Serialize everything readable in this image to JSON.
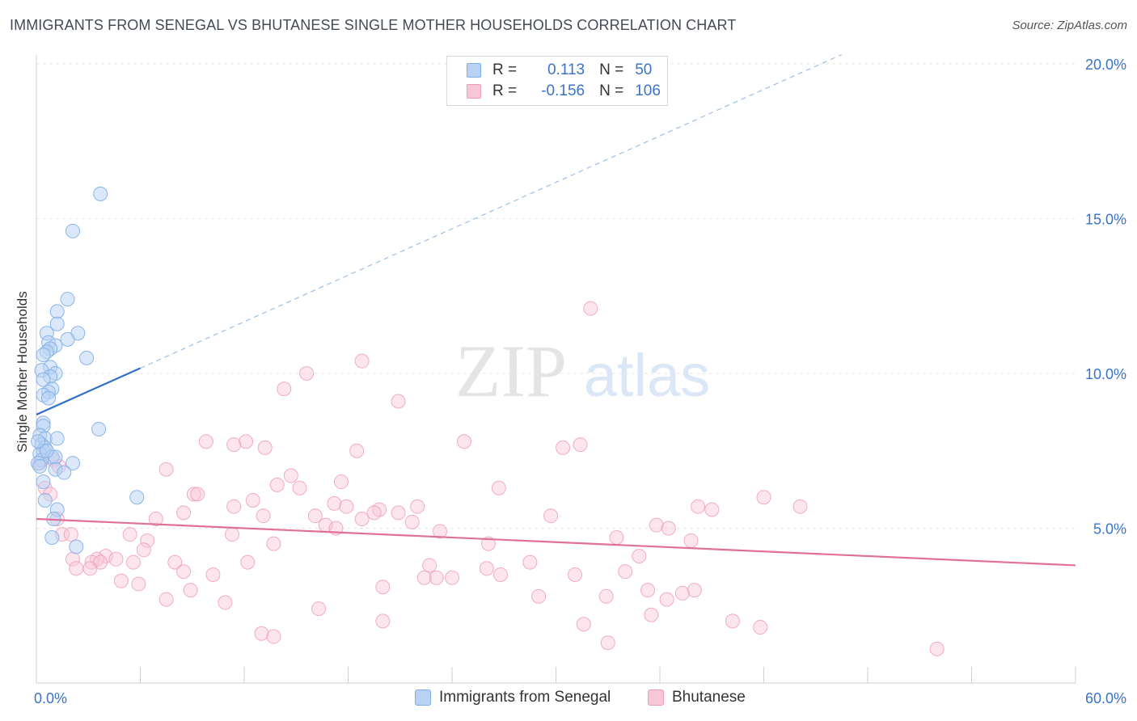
{
  "title": "IMMIGRANTS FROM SENEGAL VS BHUTANESE SINGLE MOTHER HOUSEHOLDS CORRELATION CHART",
  "source": "Source: ZipAtlas.com",
  "watermark": {
    "zip": "ZIP",
    "atlas": "atlas"
  },
  "legend": {
    "r_label": "R =",
    "n_label": "N =",
    "series1": {
      "r": "0.113",
      "n": "50"
    },
    "series2": {
      "r": "-0.156",
      "n": "106"
    }
  },
  "colors": {
    "series1_fill": "#b8d2f3",
    "series1_stroke": "#7faee6",
    "series1_line": "#2f6fc9",
    "series2_fill": "#f8c6d6",
    "series2_stroke": "#ee9ab6",
    "series2_line": "#e0709a",
    "tick_label": "#3a73c6"
  },
  "chart_data": {
    "type": "scatter",
    "xlabel": "",
    "ylabel": "Single Mother Households",
    "xlim": [
      0,
      60
    ],
    "ylim": [
      0,
      20
    ],
    "x_tick_labels": [
      {
        "value": 0,
        "label": "0.0%"
      },
      {
        "value": 60,
        "label": "60.0%"
      }
    ],
    "y_tick_labels": [
      {
        "value": 5,
        "label": "5.0%"
      },
      {
        "value": 10,
        "label": "10.0%"
      },
      {
        "value": 15,
        "label": "15.0%"
      },
      {
        "value": 20,
        "label": "20.0%"
      }
    ],
    "grid": true,
    "legend_position": "top-center",
    "series": [
      {
        "name": "Immigrants from Senegal",
        "color": "#b8d2f3",
        "trend": {
          "x_solid": [
            0,
            6
          ],
          "y_solid": [
            8.67,
            10.17
          ],
          "x_dashed": [
            6,
            46.5
          ],
          "y_dashed": [
            10.17,
            20.3
          ]
        },
        "points": [
          [
            3.7,
            15.8
          ],
          [
            2.1,
            14.6
          ],
          [
            1.8,
            12.4
          ],
          [
            1.2,
            12.0
          ],
          [
            1.2,
            11.6
          ],
          [
            2.4,
            11.3
          ],
          [
            0.6,
            11.3
          ],
          [
            1.8,
            11.1
          ],
          [
            0.7,
            11.0
          ],
          [
            1.1,
            10.9
          ],
          [
            0.8,
            10.8
          ],
          [
            0.6,
            10.7
          ],
          [
            0.4,
            10.6
          ],
          [
            2.9,
            10.5
          ],
          [
            0.8,
            10.2
          ],
          [
            0.3,
            10.1
          ],
          [
            1.1,
            10.0
          ],
          [
            0.8,
            9.9
          ],
          [
            0.4,
            9.8
          ],
          [
            0.9,
            9.5
          ],
          [
            0.7,
            9.4
          ],
          [
            0.4,
            9.3
          ],
          [
            0.7,
            9.2
          ],
          [
            0.4,
            8.4
          ],
          [
            0.4,
            8.3
          ],
          [
            3.6,
            8.2
          ],
          [
            0.2,
            8.0
          ],
          [
            0.5,
            7.9
          ],
          [
            1.2,
            7.9
          ],
          [
            0.3,
            7.7
          ],
          [
            0.5,
            7.6
          ],
          [
            0.4,
            7.5
          ],
          [
            0.2,
            7.4
          ],
          [
            0.9,
            7.3
          ],
          [
            1.1,
            7.3
          ],
          [
            0.3,
            7.2
          ],
          [
            0.1,
            7.1
          ],
          [
            2.1,
            7.1
          ],
          [
            0.2,
            7.0
          ],
          [
            1.1,
            6.9
          ],
          [
            1.6,
            6.8
          ],
          [
            0.4,
            6.5
          ],
          [
            5.8,
            6.0
          ],
          [
            0.5,
            5.9
          ],
          [
            1.2,
            5.6
          ],
          [
            1.0,
            5.3
          ],
          [
            0.9,
            4.7
          ],
          [
            2.3,
            4.4
          ],
          [
            0.1,
            7.8
          ],
          [
            0.6,
            7.5
          ]
        ]
      },
      {
        "name": "Bhutanese",
        "color": "#f8c6d6",
        "trend": {
          "x": [
            0,
            60
          ],
          "y": [
            5.3,
            3.8
          ]
        },
        "points": [
          [
            32.0,
            12.1
          ],
          [
            18.8,
            10.4
          ],
          [
            15.6,
            10.0
          ],
          [
            14.3,
            9.5
          ],
          [
            20.9,
            9.1
          ],
          [
            12.1,
            7.8
          ],
          [
            9.8,
            7.8
          ],
          [
            11.4,
            7.7
          ],
          [
            24.7,
            7.8
          ],
          [
            31.4,
            7.7
          ],
          [
            30.4,
            7.6
          ],
          [
            13.2,
            7.6
          ],
          [
            18.5,
            7.5
          ],
          [
            1.0,
            7.2
          ],
          [
            1.3,
            7.0
          ],
          [
            7.5,
            6.9
          ],
          [
            14.7,
            6.7
          ],
          [
            17.6,
            6.5
          ],
          [
            13.9,
            6.4
          ],
          [
            15.2,
            6.3
          ],
          [
            26.7,
            6.3
          ],
          [
            9.1,
            6.1
          ],
          [
            9.3,
            6.1
          ],
          [
            42.0,
            6.0
          ],
          [
            0.5,
            6.3
          ],
          [
            12.5,
            5.9
          ],
          [
            11.4,
            5.7
          ],
          [
            17.2,
            5.8
          ],
          [
            17.9,
            5.7
          ],
          [
            22.0,
            5.7
          ],
          [
            38.2,
            5.7
          ],
          [
            39.0,
            5.6
          ],
          [
            44.1,
            5.7
          ],
          [
            19.8,
            5.6
          ],
          [
            19.5,
            5.5
          ],
          [
            8.5,
            5.5
          ],
          [
            20.9,
            5.5
          ],
          [
            16.1,
            5.4
          ],
          [
            13.1,
            5.4
          ],
          [
            29.7,
            5.4
          ],
          [
            6.9,
            5.3
          ],
          [
            18.8,
            5.3
          ],
          [
            21.7,
            5.2
          ],
          [
            1.2,
            5.3
          ],
          [
            16.7,
            5.1
          ],
          [
            35.8,
            5.1
          ],
          [
            36.5,
            5.0
          ],
          [
            17.3,
            5.0
          ],
          [
            23.3,
            4.9
          ],
          [
            5.4,
            4.8
          ],
          [
            11.3,
            4.8
          ],
          [
            1.5,
            4.8
          ],
          [
            2.0,
            4.8
          ],
          [
            33.5,
            4.7
          ],
          [
            37.8,
            4.6
          ],
          [
            6.4,
            4.6
          ],
          [
            26.1,
            4.5
          ],
          [
            13.7,
            4.5
          ],
          [
            6.2,
            4.3
          ],
          [
            34.8,
            4.1
          ],
          [
            4.0,
            4.1
          ],
          [
            2.1,
            4.0
          ],
          [
            3.5,
            4.0
          ],
          [
            4.6,
            4.0
          ],
          [
            3.2,
            3.9
          ],
          [
            3.7,
            3.9
          ],
          [
            8.0,
            3.9
          ],
          [
            12.2,
            3.9
          ],
          [
            5.6,
            3.9
          ],
          [
            28.5,
            3.9
          ],
          [
            22.7,
            3.8
          ],
          [
            26.0,
            3.7
          ],
          [
            2.3,
            3.7
          ],
          [
            3.1,
            3.7
          ],
          [
            8.5,
            3.6
          ],
          [
            34.0,
            3.6
          ],
          [
            26.8,
            3.5
          ],
          [
            31.1,
            3.5
          ],
          [
            10.2,
            3.5
          ],
          [
            22.4,
            3.4
          ],
          [
            23.1,
            3.4
          ],
          [
            24.0,
            3.4
          ],
          [
            4.9,
            3.3
          ],
          [
            5.9,
            3.2
          ],
          [
            20.0,
            3.1
          ],
          [
            8.9,
            3.0
          ],
          [
            35.3,
            3.0
          ],
          [
            38.0,
            3.0
          ],
          [
            37.3,
            2.9
          ],
          [
            29.0,
            2.8
          ],
          [
            32.9,
            2.8
          ],
          [
            36.4,
            2.7
          ],
          [
            7.5,
            2.7
          ],
          [
            10.9,
            2.6
          ],
          [
            16.3,
            2.4
          ],
          [
            35.5,
            2.2
          ],
          [
            40.2,
            2.0
          ],
          [
            31.6,
            1.9
          ],
          [
            20.0,
            2.0
          ],
          [
            41.8,
            1.8
          ],
          [
            13.0,
            1.6
          ],
          [
            13.7,
            1.5
          ],
          [
            33.0,
            1.3
          ],
          [
            52.0,
            1.1
          ],
          [
            0.8,
            6.1
          ],
          [
            0.2,
            7.1
          ]
        ]
      }
    ]
  }
}
